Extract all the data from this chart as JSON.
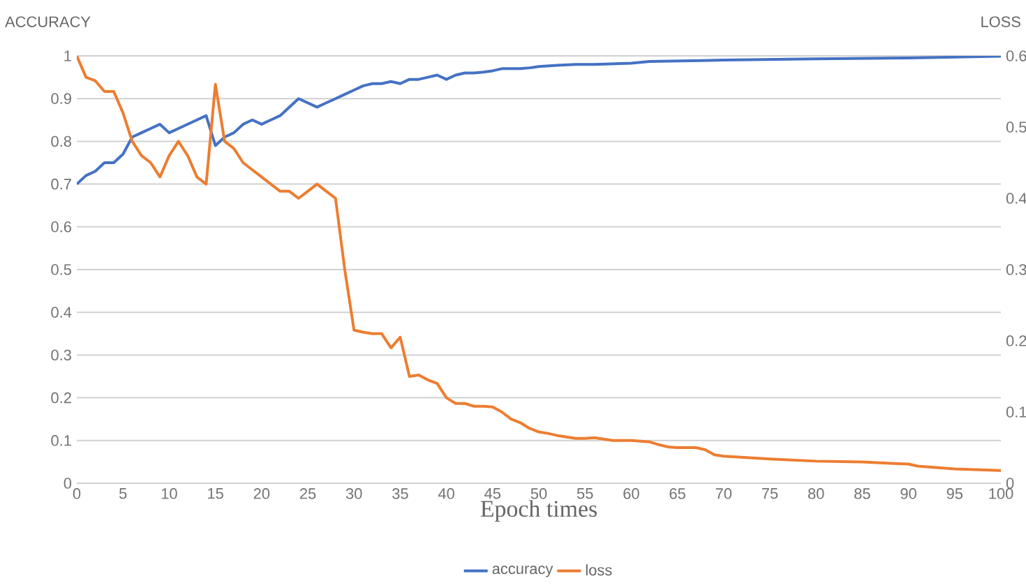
{
  "chart_data": {
    "type": "line",
    "xlabel": "Epoch times",
    "ylabel": "ACCURACY",
    "y2label": "LOSS",
    "xlim": [
      0,
      100
    ],
    "xticks": [
      0,
      5,
      10,
      15,
      20,
      25,
      30,
      35,
      40,
      45,
      50,
      55,
      60,
      65,
      70,
      75,
      80,
      85,
      90,
      95,
      100
    ],
    "ylim": [
      0,
      1
    ],
    "yticks": [
      0,
      0.1,
      0.2,
      0.3,
      0.4,
      0.5,
      0.6,
      0.7,
      0.8,
      0.9,
      1
    ],
    "y2lim": [
      0,
      0.6
    ],
    "y2ticks": [
      0,
      0.1,
      0.2,
      0.3,
      0.4,
      0.5,
      0.6
    ],
    "grid": "y",
    "legend": "bottom",
    "marker": "none",
    "line_style": "solid",
    "series": [
      {
        "name": "accuracy",
        "color": "#4472c4",
        "x": [
          0,
          1,
          2,
          3,
          4,
          5,
          6,
          7,
          8,
          9,
          10,
          11,
          12,
          13,
          14,
          15,
          16,
          17,
          18,
          19,
          20,
          21,
          22,
          23,
          24,
          25,
          26,
          27,
          28,
          29,
          30,
          31,
          32,
          33,
          34,
          35,
          36,
          37,
          38,
          39,
          40,
          41,
          42,
          43,
          44,
          45,
          46,
          47,
          48,
          49,
          50,
          52,
          54,
          56,
          60,
          62,
          70,
          80,
          90,
          100
        ],
        "values": [
          0.7,
          0.72,
          0.73,
          0.75,
          0.75,
          0.77,
          0.81,
          0.82,
          0.83,
          0.84,
          0.82,
          0.83,
          0.84,
          0.85,
          0.86,
          0.79,
          0.81,
          0.82,
          0.84,
          0.85,
          0.84,
          0.85,
          0.86,
          0.88,
          0.9,
          0.89,
          0.88,
          0.89,
          0.9,
          0.91,
          0.92,
          0.93,
          0.935,
          0.935,
          0.94,
          0.935,
          0.945,
          0.945,
          0.95,
          0.955,
          0.945,
          0.955,
          0.96,
          0.96,
          0.962,
          0.965,
          0.97,
          0.97,
          0.97,
          0.972,
          0.975,
          0.978,
          0.98,
          0.98,
          0.983,
          0.987,
          0.99,
          0.993,
          0.995,
          0.999
        ]
      },
      {
        "name": "loss",
        "color": "#ed7d31",
        "axis": "y2",
        "x": [
          0,
          1,
          2,
          3,
          4,
          5,
          6,
          7,
          8,
          9,
          10,
          11,
          12,
          13,
          14,
          15,
          16,
          17,
          18,
          19,
          20,
          21,
          22,
          23,
          24,
          25,
          26,
          27,
          28,
          29,
          30,
          31,
          32,
          33,
          34,
          35,
          36,
          37,
          38,
          39,
          40,
          41,
          42,
          43,
          44,
          45,
          46,
          47,
          48,
          49,
          50,
          51,
          52,
          53,
          54,
          55,
          56,
          57,
          58,
          59,
          60,
          62,
          63,
          64,
          65,
          66,
          67,
          68,
          69,
          70,
          75,
          80,
          85,
          88,
          90,
          91,
          95,
          100
        ],
        "values": [
          0.6,
          0.57,
          0.565,
          0.55,
          0.55,
          0.52,
          0.48,
          0.46,
          0.45,
          0.43,
          0.46,
          0.48,
          0.46,
          0.43,
          0.42,
          0.56,
          0.48,
          0.47,
          0.45,
          0.44,
          0.43,
          0.42,
          0.41,
          0.41,
          0.4,
          0.41,
          0.42,
          0.41,
          0.4,
          0.3,
          0.215,
          0.212,
          0.21,
          0.21,
          0.19,
          0.205,
          0.15,
          0.152,
          0.145,
          0.14,
          0.12,
          0.112,
          0.112,
          0.108,
          0.108,
          0.107,
          0.1,
          0.09,
          0.085,
          0.077,
          0.072,
          0.07,
          0.067,
          0.065,
          0.063,
          0.063,
          0.064,
          0.062,
          0.06,
          0.06,
          0.06,
          0.058,
          0.054,
          0.051,
          0.05,
          0.05,
          0.05,
          0.047,
          0.04,
          0.038,
          0.034,
          0.031,
          0.03,
          0.028,
          0.027,
          0.024,
          0.02,
          0.018
        ]
      }
    ]
  }
}
